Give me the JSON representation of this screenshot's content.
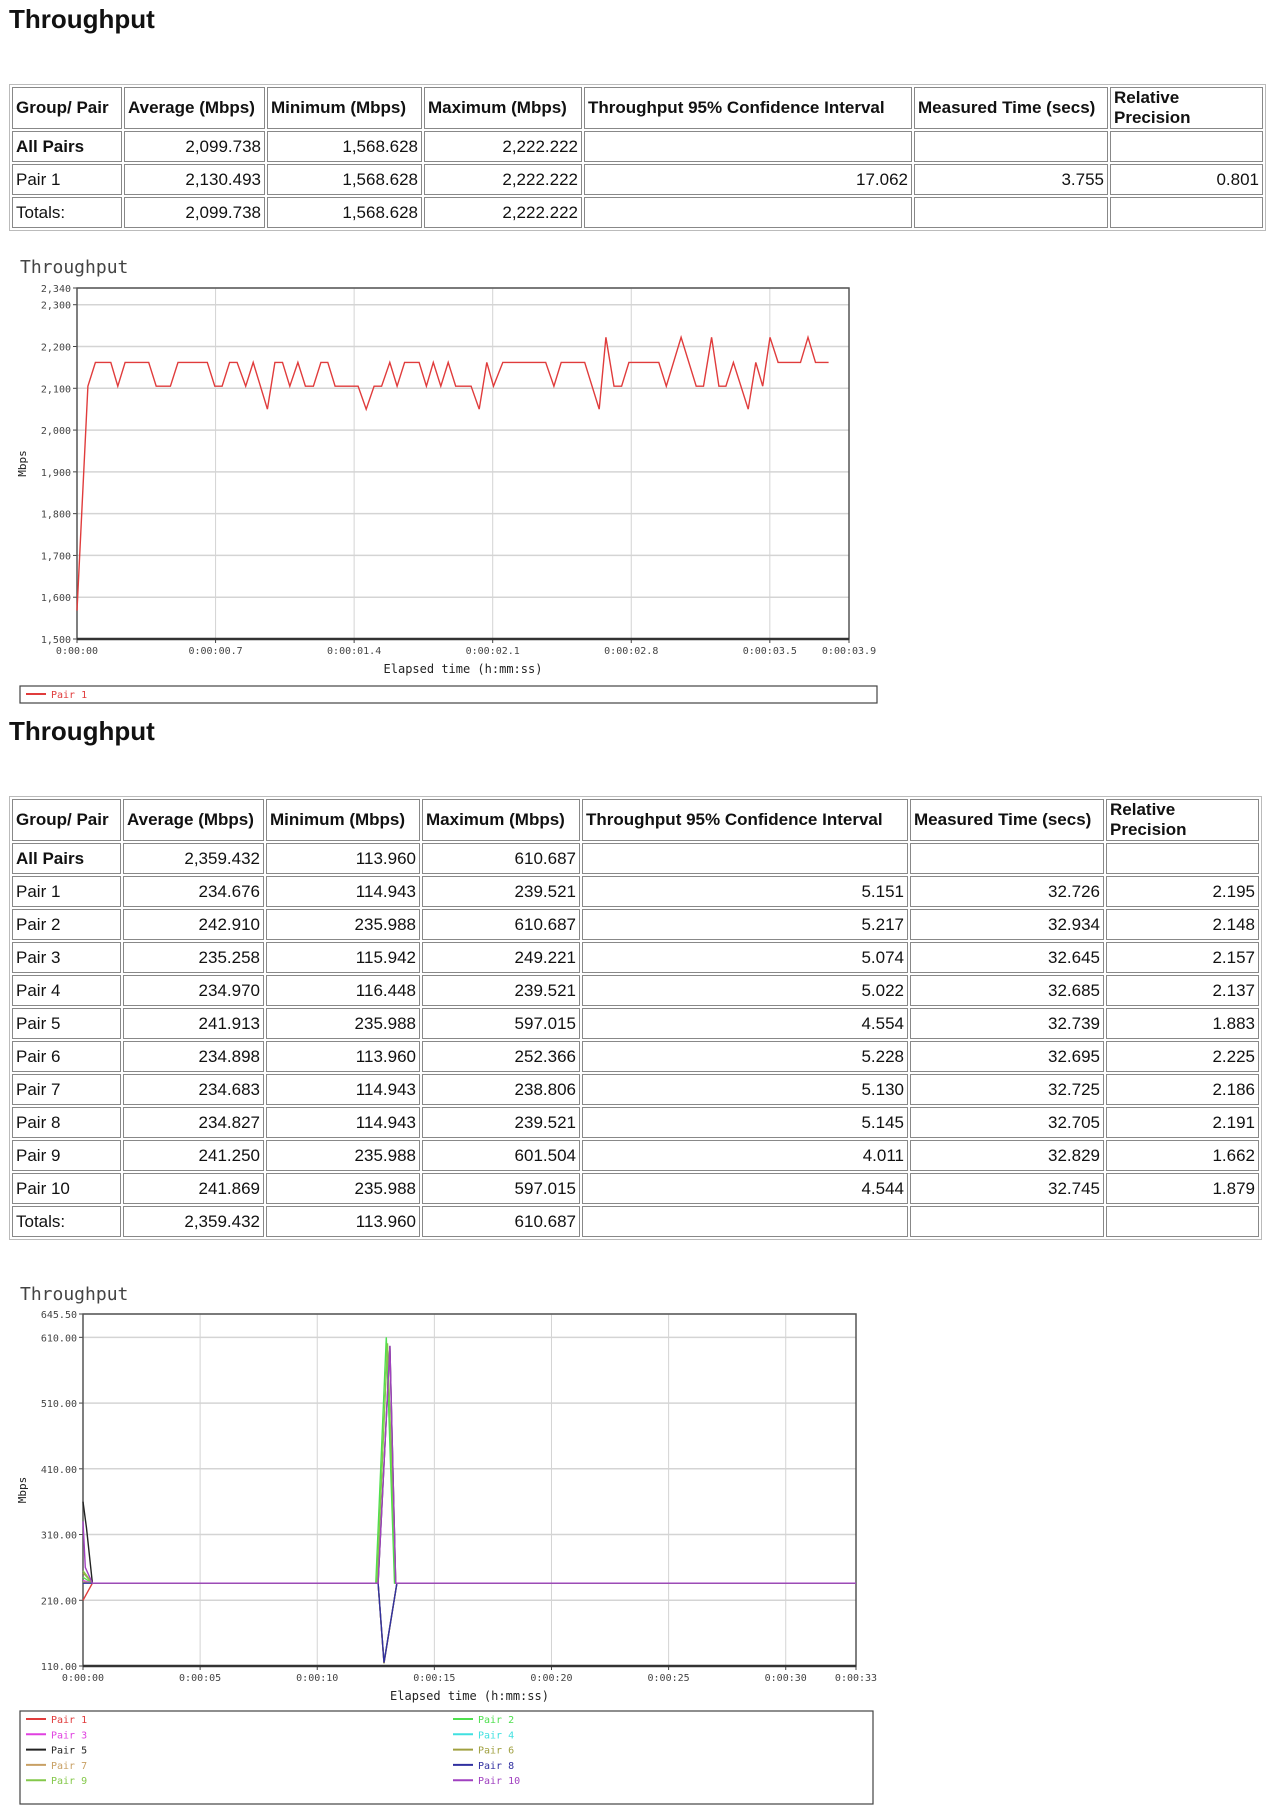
{
  "sections": [
    {
      "title": "Throughput",
      "table": {
        "headers": [
          "Group/ Pair",
          "Average (Mbps)",
          "Minimum (Mbps)",
          "Maximum (Mbps)",
          "Throughput 95% Confidence Interval",
          "Measured Time (secs)",
          "Relative Precision"
        ],
        "rows": [
          [
            "All Pairs",
            "2,099.738",
            "1,568.628",
            "2,222.222",
            "",
            "",
            ""
          ],
          [
            "Pair 1",
            "2,130.493",
            "1,568.628",
            "2,222.222",
            "17.062",
            "3.755",
            "0.801"
          ],
          [
            "Totals:",
            "2,099.738",
            "1,568.628",
            "2,222.222",
            "",
            "",
            ""
          ]
        ]
      }
    },
    {
      "title": "Throughput",
      "table": {
        "headers": [
          "Group/ Pair",
          "Average (Mbps)",
          "Minimum (Mbps)",
          "Maximum (Mbps)",
          "Throughput 95% Confidence Interval",
          "Measured Time (secs)",
          "Relative Precision"
        ],
        "rows": [
          [
            "All Pairs",
            "2,359.432",
            "113.960",
            "610.687",
            "",
            "",
            ""
          ],
          [
            "Pair 1",
            "234.676",
            "114.943",
            "239.521",
            "5.151",
            "32.726",
            "2.195"
          ],
          [
            "Pair 2",
            "242.910",
            "235.988",
            "610.687",
            "5.217",
            "32.934",
            "2.148"
          ],
          [
            "Pair 3",
            "235.258",
            "115.942",
            "249.221",
            "5.074",
            "32.645",
            "2.157"
          ],
          [
            "Pair 4",
            "234.970",
            "116.448",
            "239.521",
            "5.022",
            "32.685",
            "2.137"
          ],
          [
            "Pair 5",
            "241.913",
            "235.988",
            "597.015",
            "4.554",
            "32.739",
            "1.883"
          ],
          [
            "Pair 6",
            "234.898",
            "113.960",
            "252.366",
            "5.228",
            "32.695",
            "2.225"
          ],
          [
            "Pair 7",
            "234.683",
            "114.943",
            "238.806",
            "5.130",
            "32.725",
            "2.186"
          ],
          [
            "Pair 8",
            "234.827",
            "114.943",
            "239.521",
            "5.145",
            "32.705",
            "2.191"
          ],
          [
            "Pair 9",
            "241.250",
            "235.988",
            "601.504",
            "4.011",
            "32.829",
            "1.662"
          ],
          [
            "Pair 10",
            "241.869",
            "235.988",
            "597.015",
            "4.544",
            "32.745",
            "1.879"
          ],
          [
            "Totals:",
            "2,359.432",
            "113.960",
            "610.687",
            "",
            "",
            ""
          ]
        ]
      }
    }
  ],
  "chart_data": [
    {
      "type": "line",
      "title": "Throughput",
      "xlabel": "Elapsed time (h:mm:ss)",
      "ylabel": "Mbps",
      "xlim": [
        0,
        3.9
      ],
      "ylim": [
        1500,
        2340
      ],
      "x_ticks": [
        0,
        0.7,
        1.4,
        2.1,
        2.8,
        3.5,
        3.9
      ],
      "x_tick_labels": [
        "0:00:00",
        "0:00:00.7",
        "0:00:01.4",
        "0:00:02.1",
        "0:00:02.8",
        "0:00:03.5",
        "0:00:03.9"
      ],
      "y_ticks": [
        1500,
        1600,
        1700,
        1800,
        1900,
        2000,
        2100,
        2200,
        2300,
        2340
      ],
      "y_tick_labels": [
        "1,500",
        "1,600",
        "1,700",
        "1,800",
        "1,900",
        "2,000",
        "2,100",
        "2,200",
        "2,300",
        "2,340"
      ],
      "grid": true,
      "legend": "bottom",
      "series": [
        {
          "name": "Pair 1",
          "color": "#e03c3c",
          "x": [
            0,
            0.055,
            0.093,
            0.171,
            0.206,
            0.243,
            0.362,
            0.4,
            0.472,
            0.51,
            0.658,
            0.696,
            0.733,
            0.771,
            0.809,
            0.852,
            0.89,
            0.962,
            1.0,
            1.038,
            1.075,
            1.116,
            1.154,
            1.194,
            1.232,
            1.267,
            1.304,
            1.42,
            1.461,
            1.501,
            1.539,
            1.58,
            1.617,
            1.655,
            1.728,
            1.765,
            1.8,
            1.838,
            1.875,
            1.913,
            1.991,
            2.032,
            2.07,
            2.104,
            2.151,
            2.368,
            2.409,
            2.446,
            2.565,
            2.638,
            2.672,
            2.713,
            2.751,
            2.788,
            2.939,
            2.977,
            3.052,
            3.128,
            3.165,
            3.206,
            3.243,
            3.278,
            3.316,
            3.391,
            3.429,
            3.464,
            3.501,
            3.542,
            3.655,
            3.693,
            3.731,
            3.797
          ],
          "y": [
            1568,
            2105,
            2162,
            2162,
            2105,
            2162,
            2162,
            2105,
            2105,
            2162,
            2162,
            2105,
            2105,
            2162,
            2162,
            2105,
            2162,
            2050,
            2162,
            2162,
            2105,
            2162,
            2105,
            2105,
            2162,
            2162,
            2105,
            2105,
            2050,
            2105,
            2105,
            2162,
            2105,
            2162,
            2162,
            2105,
            2162,
            2105,
            2162,
            2105,
            2105,
            2050,
            2162,
            2105,
            2162,
            2162,
            2105,
            2162,
            2162,
            2050,
            2222,
            2105,
            2105,
            2162,
            2162,
            2105,
            2222,
            2105,
            2105,
            2222,
            2105,
            2105,
            2162,
            2050,
            2162,
            2105,
            2222,
            2162,
            2162,
            2222,
            2162,
            2162
          ]
        }
      ]
    },
    {
      "type": "line",
      "title": "Throughput",
      "xlabel": "Elapsed time (h:mm:ss)",
      "ylabel": "Mbps",
      "xlim": [
        0,
        33
      ],
      "ylim": [
        110,
        645.5
      ],
      "x_ticks": [
        0,
        5,
        10,
        15,
        20,
        25,
        30,
        33
      ],
      "x_tick_labels": [
        "0:00:00",
        "0:00:05",
        "0:00:10",
        "0:00:15",
        "0:00:20",
        "0:00:25",
        "0:00:30",
        "0:00:33"
      ],
      "y_ticks": [
        110,
        210,
        310,
        410,
        510,
        610,
        645.5
      ],
      "y_tick_labels": [
        "110.00",
        "210.00",
        "310.00",
        "410.00",
        "510.00",
        "610.00",
        "645.50"
      ],
      "grid": true,
      "legend": "bottom",
      "series": [
        {
          "name": "Pair 1",
          "color": "#e03c3c",
          "x": [
            0,
            0.4,
            12.6,
            12.85,
            13.4,
            33
          ],
          "y": [
            210,
            236,
            236,
            115,
            236,
            236
          ]
        },
        {
          "name": "Pair 2",
          "color": "#4ee04e",
          "x": [
            0,
            0.4,
            12.5,
            12.95,
            13.3,
            33
          ],
          "y": [
            245,
            236,
            236,
            610,
            236,
            236
          ]
        },
        {
          "name": "Pair 3",
          "color": "#e040e0",
          "x": [
            0,
            0.4,
            12.6,
            12.85,
            13.4,
            33
          ],
          "y": [
            240,
            236,
            236,
            116,
            236,
            236
          ]
        },
        {
          "name": "Pair 4",
          "color": "#40e0e0",
          "x": [
            0,
            0.4,
            12.6,
            12.85,
            13.4,
            33
          ],
          "y": [
            238,
            236,
            236,
            116,
            236,
            236
          ]
        },
        {
          "name": "Pair 5",
          "color": "#222222",
          "x": [
            0,
            0.15,
            0.4,
            12.6,
            13.1,
            13.35,
            33
          ],
          "y": [
            360,
            320,
            236,
            236,
            597,
            236,
            236
          ]
        },
        {
          "name": "Pair 6",
          "color": "#a0a040",
          "x": [
            0,
            0.4,
            12.6,
            12.85,
            13.4,
            33
          ],
          "y": [
            252,
            236,
            236,
            114,
            236,
            236
          ]
        },
        {
          "name": "Pair 7",
          "color": "#c8a064",
          "x": [
            0,
            0.4,
            12.6,
            12.85,
            13.4,
            33
          ],
          "y": [
            238,
            236,
            236,
            115,
            236,
            236
          ]
        },
        {
          "name": "Pair 8",
          "color": "#3030a0",
          "x": [
            0,
            0.4,
            12.6,
            12.85,
            13.4,
            33
          ],
          "y": [
            236,
            236,
            236,
            115,
            236,
            236
          ]
        },
        {
          "name": "Pair 9",
          "color": "#84c84a",
          "x": [
            0,
            0.4,
            12.55,
            13.0,
            13.35,
            33
          ],
          "y": [
            255,
            236,
            236,
            601,
            236,
            236
          ]
        },
        {
          "name": "Pair 10",
          "color": "#a040c0",
          "x": [
            0,
            0.1,
            0.4,
            12.6,
            13.1,
            13.35,
            33
          ],
          "y": [
            330,
            260,
            236,
            236,
            597,
            236,
            236
          ]
        }
      ]
    }
  ]
}
